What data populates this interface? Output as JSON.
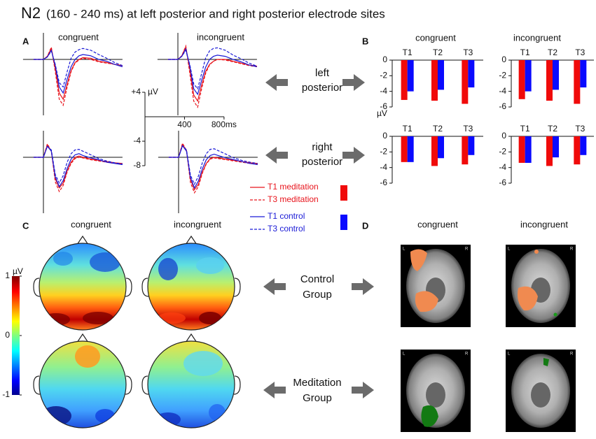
{
  "title": {
    "main": "N2",
    "rest": "(160 - 240 ms) at left posterior and right posterior electrode sites"
  },
  "panel_labels": [
    "A",
    "B",
    "C",
    "D"
  ],
  "conditions": [
    "congruent",
    "incongruent"
  ],
  "sites": [
    [
      "left",
      "posterior"
    ],
    [
      "right",
      "posterior"
    ]
  ],
  "groups": [
    [
      "Control",
      "Group"
    ],
    [
      "Meditation",
      "Group"
    ]
  ],
  "brain_labels": {
    "left": "L",
    "right": "R"
  },
  "colorbar": {
    "ticks": [
      {
        "value": 1,
        "label": "1"
      },
      0,
      -1
    ],
    "unit": "µV",
    "lim": [
      -1,
      1
    ]
  },
  "chart_data": [
    {
      "type": "line",
      "xlim": [
        -100,
        800
      ],
      "ylim": [
        -8,
        4
      ],
      "xticks": [
        400,
        {
          "value": 800,
          "label": "800ms"
        }
      ],
      "yticks": [
        {
          "value": 4,
          "label": "+4"
        },
        -4,
        -8
      ],
      "y_unit": "µV",
      "x": [
        -100,
        0,
        40,
        80,
        120,
        160,
        200,
        240,
        280,
        320,
        360,
        400,
        480,
        560,
        640,
        720,
        800
      ],
      "series": [
        {
          "name": "T1 meditation",
          "color": "#e8141c",
          "dashed": false,
          "values": [
            0,
            0,
            0.5,
            1.8,
            -1.5,
            -5.5,
            -6.5,
            -4.0,
            -1.8,
            -0.5,
            0,
            0.3,
            0.2,
            -0.3,
            -0.5,
            -0.8,
            -1.0
          ]
        },
        {
          "name": "T3 meditation",
          "color": "#e8141c",
          "dashed": true,
          "values": [
            0,
            0,
            0.5,
            2.0,
            -2.0,
            -6.5,
            -7.5,
            -4.5,
            -2.0,
            -0.6,
            -0.1,
            0.2,
            0,
            -0.4,
            -0.6,
            -0.8,
            -1.0
          ]
        },
        {
          "name": "T1 control",
          "color": "#1a1ad6",
          "dashed": false,
          "values": [
            0,
            0,
            0.4,
            1.5,
            -1.0,
            -4.5,
            -5.5,
            -3.2,
            -1.2,
            0,
            0.6,
            0.8,
            0.6,
            0,
            -0.3,
            -0.8,
            -1.2
          ]
        },
        {
          "name": "T3 control",
          "color": "#1a1ad6",
          "dashed": true,
          "values": [
            0,
            0,
            0.4,
            1.4,
            -0.8,
            -3.8,
            -4.5,
            -2.0,
            0.2,
            1.2,
            1.6,
            1.8,
            1.5,
            0.8,
            0.2,
            -0.5,
            -1.0
          ]
        }
      ]
    },
    {
      "type": "line",
      "xlim": [
        -100,
        800
      ],
      "ylim": [
        -8,
        4
      ],
      "x": [
        -100,
        0,
        40,
        80,
        120,
        160,
        200,
        240,
        280,
        320,
        360,
        400,
        480,
        560,
        640,
        720,
        800
      ],
      "series": [
        {
          "color": "#e8141c",
          "dashed": false,
          "values": [
            0,
            0,
            0.6,
            2.0,
            -1.5,
            -5.8,
            -6.8,
            -4.2,
            -2.0,
            -0.8,
            -0.3,
            0,
            0,
            -0.3,
            -0.6,
            -0.9,
            -1.1
          ]
        },
        {
          "color": "#e8141c",
          "dashed": true,
          "values": [
            0,
            0,
            0.6,
            2.2,
            -2.2,
            -6.8,
            -7.8,
            -4.8,
            -2.3,
            -0.9,
            -0.3,
            0,
            -0.1,
            -0.4,
            -0.7,
            -1.0,
            -1.2
          ]
        },
        {
          "color": "#1a1ad6",
          "dashed": false,
          "values": [
            0,
            0,
            0.5,
            1.7,
            -1.0,
            -4.8,
            -5.7,
            -3.4,
            -1.3,
            0,
            0.5,
            0.7,
            0.5,
            0,
            -0.4,
            -0.9,
            -1.2
          ]
        },
        {
          "color": "#1a1ad6",
          "dashed": true,
          "values": [
            0,
            0,
            0.5,
            1.5,
            -0.8,
            -4.0,
            -4.8,
            -2.3,
            0.2,
            1.4,
            1.8,
            1.9,
            1.5,
            0.7,
            0.1,
            -0.6,
            -1.1
          ]
        }
      ]
    },
    {
      "type": "line",
      "xlim": [
        -100,
        800
      ],
      "ylim": [
        -8,
        4
      ],
      "x": [
        -100,
        0,
        40,
        80,
        120,
        160,
        200,
        240,
        280,
        320,
        360,
        400,
        480,
        560,
        640,
        720,
        800
      ],
      "series": [
        {
          "color": "#e8141c",
          "dashed": false,
          "values": [
            0,
            0,
            2.0,
            1.0,
            -3.5,
            -5.0,
            -4.2,
            -2.2,
            -0.8,
            0,
            0.2,
            0,
            -0.3,
            -0.5,
            -0.7,
            -0.9,
            -1.0
          ]
        },
        {
          "color": "#e8141c",
          "dashed": true,
          "values": [
            0,
            0,
            2.2,
            1.0,
            -4.0,
            -5.6,
            -4.6,
            -2.4,
            -1.0,
            -0.2,
            0,
            -0.1,
            -0.4,
            -0.6,
            -0.8,
            -1.0,
            -1.1
          ]
        },
        {
          "color": "#1a1ad6",
          "dashed": false,
          "values": [
            0,
            0,
            1.8,
            1.0,
            -3.2,
            -4.8,
            -3.8,
            -1.8,
            -0.3,
            0.4,
            0.6,
            0.3,
            -0.1,
            -0.4,
            -0.8,
            -1.0,
            -1.2
          ]
        },
        {
          "color": "#1a1ad6",
          "dashed": true,
          "values": [
            0,
            0,
            1.8,
            1.2,
            -2.8,
            -4.2,
            -3.0,
            -0.8,
            0.6,
            1.2,
            1.3,
            1.0,
            0.4,
            -0.2,
            -0.6,
            -0.9,
            -1.1
          ]
        }
      ]
    },
    {
      "type": "line",
      "xlim": [
        -100,
        800
      ],
      "ylim": [
        -8,
        4
      ],
      "x": [
        -100,
        0,
        40,
        80,
        120,
        160,
        200,
        240,
        280,
        320,
        360,
        400,
        480,
        560,
        640,
        720,
        800
      ],
      "series": [
        {
          "color": "#e8141c",
          "dashed": false,
          "values": [
            0,
            0,
            2.1,
            1.1,
            -3.6,
            -5.3,
            -4.4,
            -2.4,
            -1.0,
            -0.2,
            0,
            -0.1,
            -0.3,
            -0.5,
            -0.7,
            -0.9,
            -1.0
          ]
        },
        {
          "color": "#e8141c",
          "dashed": true,
          "values": [
            0,
            0,
            2.3,
            1.1,
            -4.1,
            -5.8,
            -4.8,
            -2.6,
            -1.1,
            -0.3,
            -0.1,
            -0.2,
            -0.4,
            -0.6,
            -0.8,
            -1.0,
            -1.1
          ]
        },
        {
          "color": "#1a1ad6",
          "dashed": false,
          "values": [
            0,
            0,
            1.9,
            1.0,
            -3.3,
            -5.0,
            -3.9,
            -1.9,
            -0.4,
            0.3,
            0.5,
            0.3,
            -0.1,
            -0.4,
            -0.7,
            -1.0,
            -1.2
          ]
        },
        {
          "color": "#1a1ad6",
          "dashed": true,
          "values": [
            0,
            0,
            1.9,
            1.2,
            -2.9,
            -4.4,
            -3.1,
            -0.9,
            0.6,
            1.3,
            1.4,
            1.1,
            0.5,
            -0.1,
            -0.5,
            -0.8,
            -1.0
          ]
        }
      ]
    },
    {
      "type": "bar",
      "categories": [
        "T1",
        "T2",
        "T3"
      ],
      "ylim": [
        -6,
        0
      ],
      "yticks": [
        0,
        -2,
        -4,
        -6
      ],
      "y_unit": "µV",
      "series": [
        {
          "color": "#f00a0a",
          "values": [
            -5.1,
            -5.2,
            -5.6
          ]
        },
        {
          "color": "#0a0aff",
          "values": [
            -4.0,
            -3.8,
            -3.5
          ]
        }
      ]
    },
    {
      "type": "bar",
      "categories": [
        "T1",
        "T2",
        "T3"
      ],
      "ylim": [
        -6,
        0
      ],
      "yticks": [
        0,
        -2,
        -4,
        -6
      ],
      "series": [
        {
          "color": "#f00a0a",
          "values": [
            -5.0,
            -5.2,
            -5.6
          ]
        },
        {
          "color": "#0a0aff",
          "values": [
            -4.0,
            -3.8,
            -3.5
          ]
        }
      ]
    },
    {
      "type": "bar",
      "categories": [
        "T1",
        "T2",
        "T3"
      ],
      "ylim": [
        -6,
        0
      ],
      "yticks": [
        0,
        -2,
        -4,
        -6
      ],
      "series": [
        {
          "color": "#f00a0a",
          "values": [
            -3.3,
            -3.8,
            -3.6
          ]
        },
        {
          "color": "#0a0aff",
          "values": [
            -3.3,
            -2.8,
            -2.4
          ]
        }
      ]
    },
    {
      "type": "bar",
      "categories": [
        "T1",
        "T2",
        "T3"
      ],
      "ylim": [
        -6,
        0
      ],
      "yticks": [
        0,
        -2,
        -4,
        -6
      ],
      "series": [
        {
          "color": "#f00a0a",
          "values": [
            -3.4,
            -3.8,
            -3.6
          ]
        },
        {
          "color": "#0a0aff",
          "values": [
            -3.4,
            -2.7,
            -2.4
          ]
        }
      ]
    }
  ]
}
